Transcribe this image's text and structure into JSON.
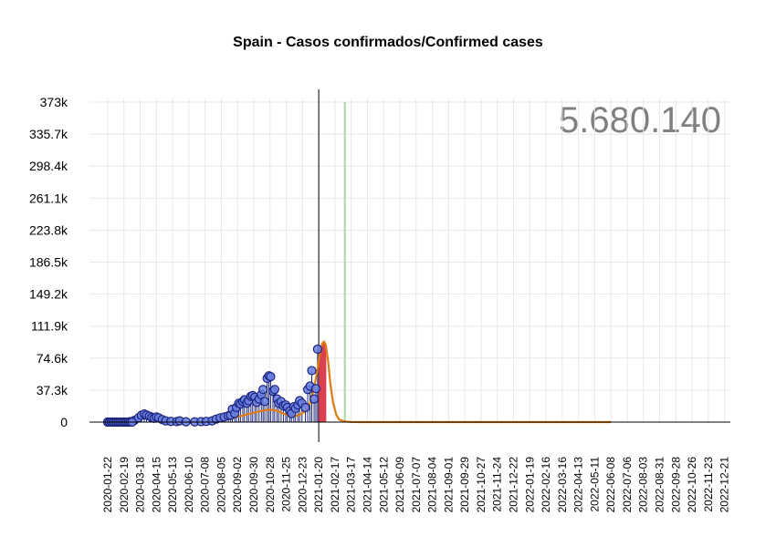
{
  "chart_data": {
    "type": "line",
    "title": "Spain - Casos confirmados/Confirmed cases",
    "total_label": "5.680.140",
    "yticks": [
      "0",
      "37.3k",
      "74.6k",
      "111.9k",
      "149.2k",
      "186.5k",
      "223.8k",
      "261.1k",
      "298.4k",
      "335.7k",
      "373k"
    ],
    "ylim": [
      0,
      373000
    ],
    "xlim": [
      "2020-01-22",
      "2022-12-31"
    ],
    "xticks": [
      "2020-01-22",
      "2020-02-19",
      "2020-03-18",
      "2020-04-15",
      "2020-05-13",
      "2020-06-10",
      "2020-07-08",
      "2020-08-05",
      "2020-09-02",
      "2020-09-30",
      "2020-10-28",
      "2020-11-25",
      "2020-12-23",
      "2021-01-20",
      "2021-02-17",
      "2021-03-17",
      "2021-04-14",
      "2021-05-12",
      "2021-06-09",
      "2021-07-07",
      "2021-08-04",
      "2021-09-01",
      "2021-09-29",
      "2021-10-27",
      "2021-11-24",
      "2021-12-22",
      "2022-01-19",
      "2022-02-16",
      "2022-03-16",
      "2022-04-13",
      "2022-05-11",
      "2022-06-08",
      "2022-07-06",
      "2022-08-03",
      "2022-08-31",
      "2022-09-28",
      "2022-10-26",
      "2022-11-23",
      "2022-12-21"
    ],
    "grid": true,
    "colors": {
      "observed_points": "#6a7fe0",
      "observed_outline": "#1a237e",
      "fit_line": "#e07b10",
      "forecast_bar": "#d94050",
      "today_line": "#000000",
      "marker_line": "#a8d8a0",
      "axis": "#000000",
      "grid": "#e8e8e8"
    },
    "vertical_markers": [
      {
        "date": "2021-01-20",
        "kind": "today"
      },
      {
        "date": "2021-03-06",
        "kind": "reference"
      }
    ],
    "observed_points": [
      [
        "2020-01-22",
        0
      ],
      [
        "2020-02-05",
        0
      ],
      [
        "2020-02-19",
        0
      ],
      [
        "2020-03-01",
        500
      ],
      [
        "2020-03-08",
        2000
      ],
      [
        "2020-03-15",
        5000
      ],
      [
        "2020-03-20",
        8000
      ],
      [
        "2020-03-25",
        9500
      ],
      [
        "2020-03-29",
        8200
      ],
      [
        "2020-04-03",
        7000
      ],
      [
        "2020-04-07",
        5500
      ],
      [
        "2020-04-11",
        4500
      ],
      [
        "2020-04-15",
        6000
      ],
      [
        "2020-04-19",
        5000
      ],
      [
        "2020-04-25",
        3000
      ],
      [
        "2020-05-01",
        1500
      ],
      [
        "2020-05-10",
        800
      ],
      [
        "2020-05-20",
        500
      ],
      [
        "2020-05-25",
        1500
      ],
      [
        "2020-06-05",
        400
      ],
      [
        "2020-06-20",
        300
      ],
      [
        "2020-07-01",
        500
      ],
      [
        "2020-07-10",
        800
      ],
      [
        "2020-07-20",
        1500
      ],
      [
        "2020-07-27",
        3500
      ],
      [
        "2020-08-03",
        5000
      ],
      [
        "2020-08-10",
        6000
      ],
      [
        "2020-08-17",
        7500
      ],
      [
        "2020-08-21",
        8000
      ],
      [
        "2020-08-24",
        15000
      ],
      [
        "2020-08-28",
        10000
      ],
      [
        "2020-08-31",
        17000
      ],
      [
        "2020-09-04",
        22000
      ],
      [
        "2020-09-07",
        21000
      ],
      [
        "2020-09-11",
        24000
      ],
      [
        "2020-09-14",
        26000
      ],
      [
        "2020-09-18",
        22000
      ],
      [
        "2020-09-21",
        25000
      ],
      [
        "2020-09-25",
        30000
      ],
      [
        "2020-09-28",
        31000
      ],
      [
        "2020-10-02",
        29000
      ],
      [
        "2020-10-05",
        23000
      ],
      [
        "2020-10-09",
        27000
      ],
      [
        "2020-10-13",
        32000
      ],
      [
        "2020-10-16",
        38000
      ],
      [
        "2020-10-19",
        24000
      ],
      [
        "2020-10-23",
        51000
      ],
      [
        "2020-10-26",
        54000
      ],
      [
        "2020-10-29",
        53000
      ],
      [
        "2020-11-02",
        36000
      ],
      [
        "2020-11-05",
        38000
      ],
      [
        "2020-11-09",
        27000
      ],
      [
        "2020-11-12",
        22000
      ],
      [
        "2020-11-16",
        24000
      ],
      [
        "2020-11-20",
        19000
      ],
      [
        "2020-11-24",
        20000
      ],
      [
        "2020-11-27",
        17000
      ],
      [
        "2020-12-01",
        13000
      ],
      [
        "2020-12-04",
        10000
      ],
      [
        "2020-12-08",
        18000
      ],
      [
        "2020-12-11",
        16000
      ],
      [
        "2020-12-15",
        20000
      ],
      [
        "2020-12-18",
        25000
      ],
      [
        "2020-12-22",
        22000
      ],
      [
        "2020-12-28",
        17000
      ],
      [
        "2021-01-01",
        38000
      ],
      [
        "2021-01-05",
        42000
      ],
      [
        "2021-01-08",
        60000
      ],
      [
        "2021-01-12",
        27000
      ],
      [
        "2021-01-15",
        39000
      ],
      [
        "2021-01-18",
        85000
      ]
    ],
    "fit_curve": [
      [
        "2020-01-22",
        0
      ],
      [
        "2020-03-01",
        500
      ],
      [
        "2020-03-15",
        5000
      ],
      [
        "2020-03-25",
        8500
      ],
      [
        "2020-04-05",
        6500
      ],
      [
        "2020-04-15",
        4000
      ],
      [
        "2020-05-01",
        1200
      ],
      [
        "2020-05-20",
        300
      ],
      [
        "2020-06-15",
        100
      ],
      [
        "2020-07-10",
        300
      ],
      [
        "2020-07-25",
        1000
      ],
      [
        "2020-08-10",
        2500
      ],
      [
        "2020-08-25",
        5000
      ],
      [
        "2020-09-10",
        7500
      ],
      [
        "2020-09-25",
        10000
      ],
      [
        "2020-10-10",
        12500
      ],
      [
        "2020-10-25",
        14500
      ],
      [
        "2020-11-05",
        14000
      ],
      [
        "2020-11-15",
        11500
      ],
      [
        "2020-11-25",
        8500
      ],
      [
        "2020-12-10",
        7000
      ],
      [
        "2020-12-20",
        9000
      ],
      [
        "2020-12-28",
        13000
      ],
      [
        "2021-01-05",
        22000
      ],
      [
        "2021-01-12",
        40000
      ],
      [
        "2021-01-18",
        62000
      ],
      [
        "2021-01-22",
        80000
      ],
      [
        "2021-01-26",
        91000
      ],
      [
        "2021-01-29",
        94000
      ],
      [
        "2021-02-01",
        90000
      ],
      [
        "2021-02-05",
        72000
      ],
      [
        "2021-02-09",
        45000
      ],
      [
        "2021-02-14",
        22000
      ],
      [
        "2021-02-19",
        9000
      ],
      [
        "2021-02-24",
        3000
      ],
      [
        "2021-03-05",
        800
      ],
      [
        "2021-03-15",
        200
      ],
      [
        "2021-04-01",
        0
      ],
      [
        "2022-06-08",
        0
      ]
    ],
    "forecast_bars": [
      [
        "2021-01-21",
        80000
      ],
      [
        "2021-01-22",
        84000
      ],
      [
        "2021-01-23",
        87000
      ],
      [
        "2021-01-24",
        90000
      ],
      [
        "2021-01-25",
        92000
      ],
      [
        "2021-01-26",
        93000
      ],
      [
        "2021-01-27",
        94000
      ],
      [
        "2021-01-28",
        93500
      ],
      [
        "2021-01-29",
        92500
      ],
      [
        "2021-01-30",
        91000
      ],
      [
        "2021-01-31",
        89000
      ],
      [
        "2021-02-01",
        87000
      ]
    ]
  }
}
